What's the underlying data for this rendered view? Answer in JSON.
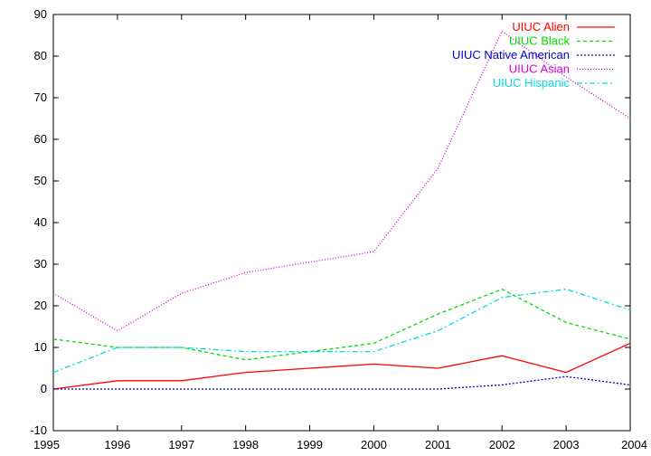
{
  "chart_data": {
    "type": "line",
    "title": "",
    "xlabel": "",
    "ylabel": "",
    "x": [
      1995,
      1996,
      1997,
      1998,
      1999,
      2000,
      2001,
      2002,
      2003,
      2004
    ],
    "xlim": [
      1995,
      2004
    ],
    "ylim": [
      -10,
      90
    ],
    "x_ticks": [
      "1995",
      "1996",
      "1997",
      "1998",
      "1999",
      "2000",
      "2001",
      "2002",
      "2003",
      "2004"
    ],
    "y_ticks": [
      "-10",
      "0",
      "10",
      "20",
      "30",
      "40",
      "50",
      "60",
      "70",
      "80",
      "90"
    ],
    "legend_position": "top-right",
    "grid": false,
    "series": [
      {
        "name": "UIUC Alien",
        "color": "#ff0000",
        "dash": "solid",
        "values": [
          0,
          2,
          2,
          4,
          5,
          6,
          5,
          8,
          4,
          11
        ]
      },
      {
        "name": "UIUC Black",
        "color": "#00dd00",
        "dash": "dashed",
        "values": [
          12,
          10,
          10,
          7,
          9,
          11,
          18,
          24,
          16,
          12
        ]
      },
      {
        "name": "UIUC Native American",
        "color": "#0000cc",
        "dash": "dotted",
        "values": [
          0,
          0,
          0,
          0,
          0,
          0,
          0,
          1,
          3,
          1
        ]
      },
      {
        "name": "UIUC Asian",
        "color": "#dd00dd",
        "dash": "fine-dotted",
        "values": [
          23,
          14,
          23,
          28,
          30.5,
          33,
          53,
          86,
          75,
          65
        ]
      },
      {
        "name": "UIUC Hispanic",
        "color": "#00dddd",
        "dash": "dash-dot",
        "values": [
          4,
          10,
          10,
          9,
          9,
          9,
          14,
          22,
          24,
          19
        ]
      }
    ]
  }
}
